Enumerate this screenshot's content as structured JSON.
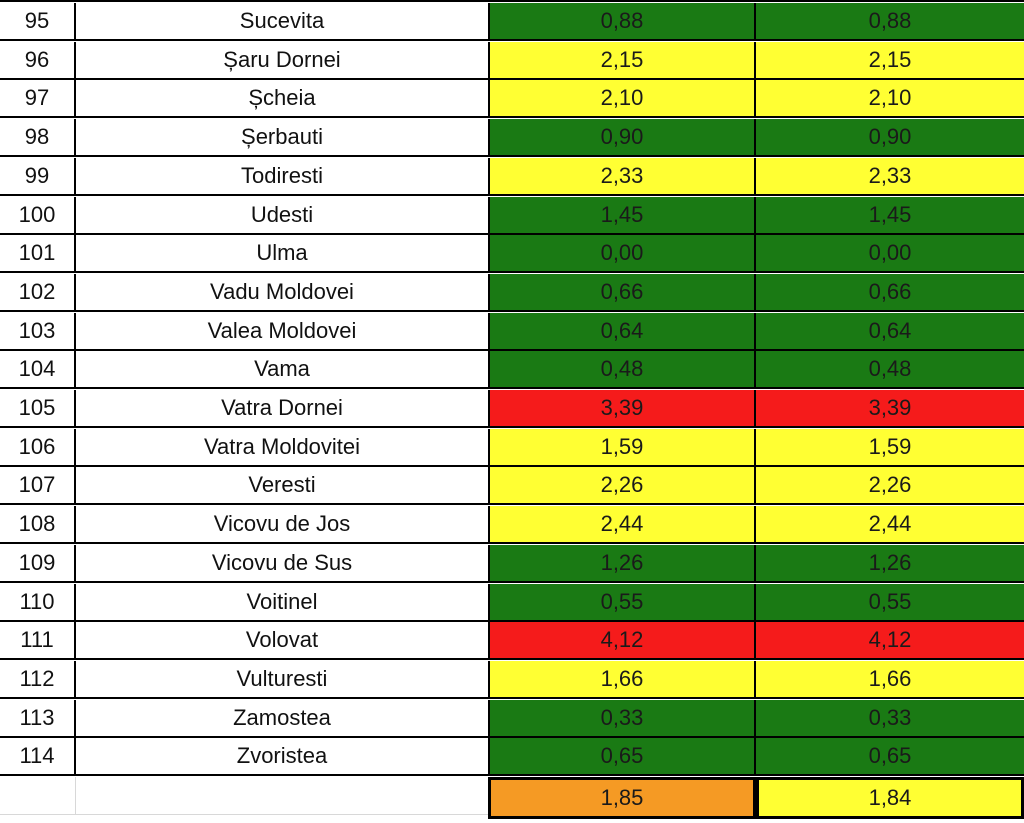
{
  "rows": [
    {
      "num": "95",
      "name": "Sucevita",
      "v1": "0,88",
      "v2": "0,88",
      "c1": "green",
      "c2": "green"
    },
    {
      "num": "96",
      "name": "Șaru Dornei",
      "v1": "2,15",
      "v2": "2,15",
      "c1": "yellow",
      "c2": "yellow"
    },
    {
      "num": "97",
      "name": "Șcheia",
      "v1": "2,10",
      "v2": "2,10",
      "c1": "yellow",
      "c2": "yellow"
    },
    {
      "num": "98",
      "name": "Șerbauti",
      "v1": "0,90",
      "v2": "0,90",
      "c1": "green",
      "c2": "green"
    },
    {
      "num": "99",
      "name": "Todiresti",
      "v1": "2,33",
      "v2": "2,33",
      "c1": "yellow",
      "c2": "yellow"
    },
    {
      "num": "100",
      "name": "Udesti",
      "v1": "1,45",
      "v2": "1,45",
      "c1": "green",
      "c2": "green"
    },
    {
      "num": "101",
      "name": "Ulma",
      "v1": "0,00",
      "v2": "0,00",
      "c1": "green",
      "c2": "green"
    },
    {
      "num": "102",
      "name": "Vadu Moldovei",
      "v1": "0,66",
      "v2": "0,66",
      "c1": "green",
      "c2": "green"
    },
    {
      "num": "103",
      "name": "Valea Moldovei",
      "v1": "0,64",
      "v2": "0,64",
      "c1": "green",
      "c2": "green"
    },
    {
      "num": "104",
      "name": "Vama",
      "v1": "0,48",
      "v2": "0,48",
      "c1": "green",
      "c2": "green"
    },
    {
      "num": "105",
      "name": "Vatra Dornei",
      "v1": "3,39",
      "v2": "3,39",
      "c1": "red",
      "c2": "red"
    },
    {
      "num": "106",
      "name": "Vatra Moldovitei",
      "v1": "1,59",
      "v2": "1,59",
      "c1": "yellow",
      "c2": "yellow"
    },
    {
      "num": "107",
      "name": "Veresti",
      "v1": "2,26",
      "v2": "2,26",
      "c1": "yellow",
      "c2": "yellow"
    },
    {
      "num": "108",
      "name": "Vicovu de Jos",
      "v1": "2,44",
      "v2": "2,44",
      "c1": "yellow",
      "c2": "yellow"
    },
    {
      "num": "109",
      "name": "Vicovu de Sus",
      "v1": "1,26",
      "v2": "1,26",
      "c1": "green",
      "c2": "green"
    },
    {
      "num": "110",
      "name": "Voitinel",
      "v1": "0,55",
      "v2": "0,55",
      "c1": "green",
      "c2": "green"
    },
    {
      "num": "111",
      "name": "Volovat",
      "v1": "4,12",
      "v2": "4,12",
      "c1": "red",
      "c2": "red"
    },
    {
      "num": "112",
      "name": "Vulturesti",
      "v1": "1,66",
      "v2": "1,66",
      "c1": "yellow",
      "c2": "yellow"
    },
    {
      "num": "113",
      "name": "Zamostea",
      "v1": "0,33",
      "v2": "0,33",
      "c1": "green",
      "c2": "green"
    },
    {
      "num": "114",
      "name": "Zvoristea",
      "v1": "0,65",
      "v2": "0,65",
      "c1": "green",
      "c2": "green"
    }
  ],
  "total": {
    "num": "",
    "name": "",
    "v1": "1,85",
    "v2": "1,84",
    "c1": "orange",
    "c2": "yellow"
  },
  "colors": {
    "green": "#1a7a14",
    "yellow": "#ffff33",
    "red": "#f51b1b",
    "orange": "#f59a24"
  }
}
